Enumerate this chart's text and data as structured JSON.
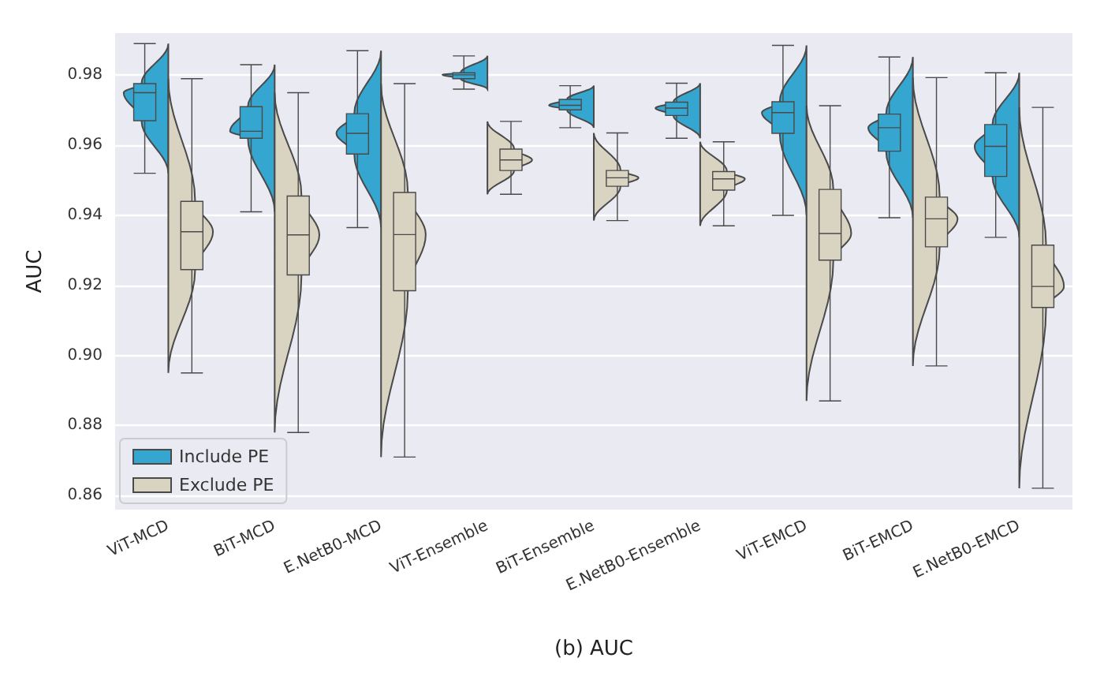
{
  "chart_data": {
    "type": "box",
    "xlabel": "(b) AUC",
    "ylabel": "AUC",
    "categories": [
      "ViT-MCD",
      "BiT-MCD",
      "E.NetB0-MCD",
      "ViT-Ensemble",
      "BiT-Ensemble",
      "E.NetB0-Ensemble",
      "ViT-EMCD",
      "BiT-EMCD",
      "E.NetB0-EMCD"
    ],
    "ylim": [
      0.856,
      0.992
    ],
    "yticks": [
      {
        "value": 0.86,
        "label": "0.86"
      },
      {
        "value": 0.88,
        "label": "0.88"
      },
      {
        "value": 0.9,
        "label": "0.90"
      },
      {
        "value": 0.92,
        "label": "0.92"
      },
      {
        "value": 0.94,
        "label": "0.94"
      },
      {
        "value": 0.96,
        "label": "0.96"
      },
      {
        "value": 0.98,
        "label": "0.98"
      }
    ],
    "grid": "y",
    "legend": "bottom left",
    "series": [
      {
        "name": "Include PE",
        "color": "#35a6d0",
        "boxes": [
          {
            "low": 0.952,
            "q1": 0.967,
            "median": 0.975,
            "q3": 0.9776,
            "high": 0.989
          },
          {
            "low": 0.941,
            "q1": 0.962,
            "median": 0.964,
            "q3": 0.971,
            "high": 0.983
          },
          {
            "low": 0.9365,
            "q1": 0.9575,
            "median": 0.9634,
            "q3": 0.969,
            "high": 0.987
          },
          {
            "low": 0.976,
            "q1": 0.979,
            "median": 0.9801,
            "q3": 0.9807,
            "high": 0.9855
          },
          {
            "low": 0.965,
            "q1": 0.9701,
            "median": 0.9714,
            "q3": 0.9731,
            "high": 0.977
          },
          {
            "low": 0.962,
            "q1": 0.9685,
            "median": 0.9706,
            "q3": 0.9723,
            "high": 0.9777
          },
          {
            "low": 0.94,
            "q1": 0.9634,
            "median": 0.9693,
            "q3": 0.9724,
            "high": 0.9885
          },
          {
            "low": 0.9393,
            "q1": 0.9583,
            "median": 0.965,
            "q3": 0.9689,
            "high": 0.9852
          },
          {
            "low": 0.9337,
            "q1": 0.9511,
            "median": 0.9597,
            "q3": 0.9659,
            "high": 0.9807
          }
        ]
      },
      {
        "name": "Exclude PE",
        "color": "#d9d3c1",
        "boxes": [
          {
            "low": 0.895,
            "q1": 0.9245,
            "median": 0.9353,
            "q3": 0.944,
            "high": 0.979
          },
          {
            "low": 0.878,
            "q1": 0.923,
            "median": 0.9344,
            "q3": 0.9455,
            "high": 0.975
          },
          {
            "low": 0.871,
            "q1": 0.9185,
            "median": 0.9345,
            "q3": 0.9465,
            "high": 0.9776
          },
          {
            "low": 0.946,
            "q1": 0.9528,
            "median": 0.9558,
            "q3": 0.9589,
            "high": 0.9668
          },
          {
            "low": 0.9385,
            "q1": 0.9483,
            "median": 0.9507,
            "q3": 0.9528,
            "high": 0.9635
          },
          {
            "low": 0.937,
            "q1": 0.9472,
            "median": 0.9504,
            "q3": 0.9525,
            "high": 0.961
          },
          {
            "low": 0.887,
            "q1": 0.9272,
            "median": 0.9348,
            "q3": 0.9474,
            "high": 0.9713
          },
          {
            "low": 0.897,
            "q1": 0.931,
            "median": 0.939,
            "q3": 0.9452,
            "high": 0.9793
          },
          {
            "low": 0.8621,
            "q1": 0.9137,
            "median": 0.9197,
            "q3": 0.9315,
            "high": 0.9708
          }
        ]
      }
    ]
  }
}
